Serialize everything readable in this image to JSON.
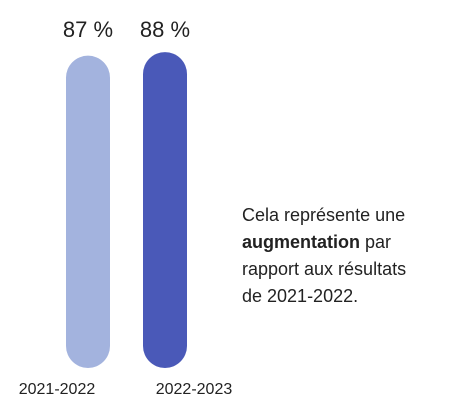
{
  "chart_data": {
    "type": "bar",
    "categories": [
      "2021-2022",
      "2022-2023"
    ],
    "values": [
      87,
      88
    ],
    "value_labels": [
      "87 %",
      "88 %"
    ],
    "colors": [
      "#a3b3de",
      "#4a59b8"
    ],
    "ylim": [
      0,
      100
    ],
    "annotation": [
      {
        "text": "Cela représente une"
      },
      {
        "bold": "augmentation",
        "text": "par"
      },
      {
        "text": "rapport aux résultats"
      },
      {
        "text": "de 2021-2022."
      }
    ]
  }
}
